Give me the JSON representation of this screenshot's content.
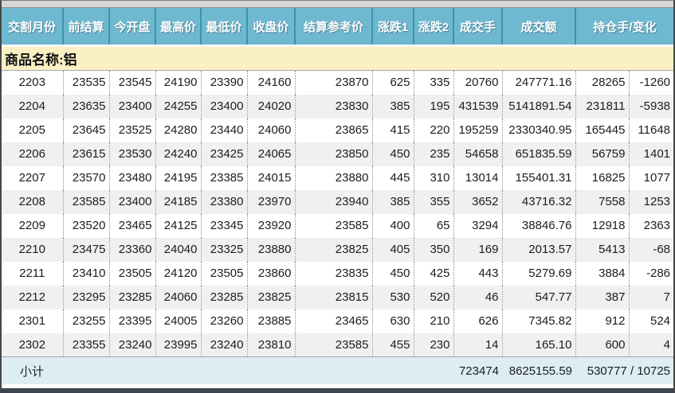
{
  "header": {
    "columns": [
      {
        "label": "交割月份",
        "span": 1
      },
      {
        "label": "前结算",
        "span": 1
      },
      {
        "label": "今开盘",
        "span": 1
      },
      {
        "label": "最高价",
        "span": 1
      },
      {
        "label": "最低价",
        "span": 1
      },
      {
        "label": "收盘价",
        "span": 1
      },
      {
        "label": "结算参考价",
        "span": 1
      },
      {
        "label": "涨跌1",
        "span": 1
      },
      {
        "label": "涨跌2",
        "span": 1
      },
      {
        "label": "成交手",
        "span": 1
      },
      {
        "label": "成交额",
        "span": 1
      },
      {
        "label": "持仓手/变化",
        "span": 2
      }
    ]
  },
  "commodity": {
    "label": "商品名称:铝"
  },
  "table": {
    "rows": [
      [
        "2203",
        "23535",
        "23545",
        "24190",
        "23390",
        "24160",
        "23870",
        "625",
        "335",
        "20760",
        "247771.16",
        "28265",
        "-1260"
      ],
      [
        "2204",
        "23635",
        "23400",
        "24255",
        "23400",
        "24020",
        "23830",
        "385",
        "195",
        "431539",
        "5141891.54",
        "231811",
        "-5938"
      ],
      [
        "2205",
        "23645",
        "23525",
        "24280",
        "23440",
        "24060",
        "23865",
        "415",
        "220",
        "195259",
        "2330340.95",
        "165445",
        "11648"
      ],
      [
        "2206",
        "23615",
        "23530",
        "24240",
        "23425",
        "24065",
        "23850",
        "450",
        "235",
        "54658",
        "651835.59",
        "56759",
        "1401"
      ],
      [
        "2207",
        "23570",
        "23480",
        "24195",
        "23385",
        "24015",
        "23880",
        "445",
        "310",
        "13014",
        "155401.31",
        "16825",
        "1077"
      ],
      [
        "2208",
        "23585",
        "23400",
        "24185",
        "23380",
        "23970",
        "23940",
        "385",
        "355",
        "3652",
        "43716.32",
        "7558",
        "1253"
      ],
      [
        "2209",
        "23520",
        "23465",
        "24125",
        "23345",
        "23920",
        "23585",
        "400",
        "65",
        "3294",
        "38846.76",
        "12918",
        "2363"
      ],
      [
        "2210",
        "23475",
        "23360",
        "24040",
        "23325",
        "23880",
        "23825",
        "405",
        "350",
        "169",
        "2013.57",
        "5413",
        "-68"
      ],
      [
        "2211",
        "23410",
        "23505",
        "24120",
        "23505",
        "23860",
        "23835",
        "450",
        "425",
        "443",
        "5279.69",
        "3884",
        "-286"
      ],
      [
        "2212",
        "23295",
        "23285",
        "24060",
        "23285",
        "23825",
        "23815",
        "530",
        "520",
        "46",
        "547.77",
        "387",
        "7"
      ],
      [
        "2301",
        "23255",
        "23395",
        "24005",
        "23260",
        "23885",
        "23465",
        "630",
        "210",
        "626",
        "7345.82",
        "912",
        "524"
      ],
      [
        "2302",
        "23355",
        "23240",
        "23995",
        "23240",
        "23810",
        "23585",
        "455",
        "230",
        "14",
        "165.10",
        "600",
        "4"
      ]
    ]
  },
  "subtotal": {
    "label": "小计",
    "volume": "723474",
    "turnover": "8625155.59",
    "oi_and_change": "530777 / 10725"
  },
  "colors": {
    "header_bg": "#6FB9D0",
    "header_separator": "#3F92AE",
    "commodity_bg": "#FAF0C4",
    "row_alt_bg": "#F0F0F0",
    "subtotal_bg": "#DCEDF4",
    "text": "#1C1C1C"
  }
}
